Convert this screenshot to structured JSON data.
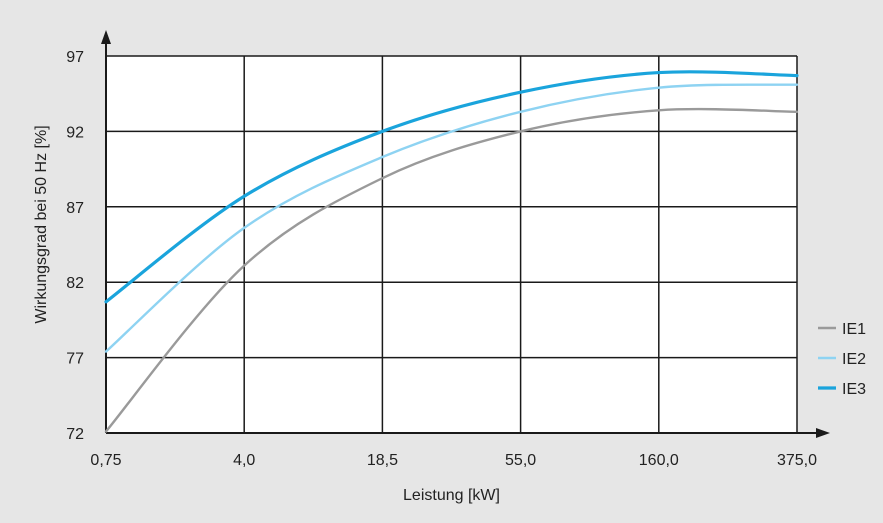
{
  "chart_data": {
    "type": "line",
    "title": "",
    "xlabel": "Leistung [kW]",
    "ylabel": "Wirkungsgrad bei 50 Hz [%]",
    "x_ticks": [
      "0,75",
      "4,0",
      "18,5",
      "55,0",
      "160,0",
      "375,0"
    ],
    "y_ticks": [
      "72",
      "77",
      "82",
      "87",
      "92",
      "97"
    ],
    "ylim": [
      72,
      97
    ],
    "x_scale": "categorical-log",
    "grid": true,
    "legend_position": "right",
    "series": [
      {
        "name": "IE1",
        "color": "#9a9a9a",
        "x": [
          "0,75",
          "4,0",
          "18,5",
          "55,0",
          "160,0",
          "375,0"
        ],
        "values": [
          72.1,
          83.1,
          88.9,
          92.0,
          93.4,
          93.3
        ]
      },
      {
        "name": "IE2",
        "color": "#8ed3f2",
        "x": [
          "0,75",
          "4,0",
          "18,5",
          "55,0",
          "160,0",
          "375,0"
        ],
        "values": [
          77.4,
          85.6,
          90.3,
          93.3,
          94.9,
          95.1
        ]
      },
      {
        "name": "IE3",
        "color": "#1aa4dc",
        "x": [
          "0,75",
          "4,0",
          "18,5",
          "55,0",
          "160,0",
          "375,0"
        ],
        "values": [
          80.7,
          87.7,
          92.0,
          94.6,
          95.9,
          95.7
        ]
      }
    ]
  }
}
